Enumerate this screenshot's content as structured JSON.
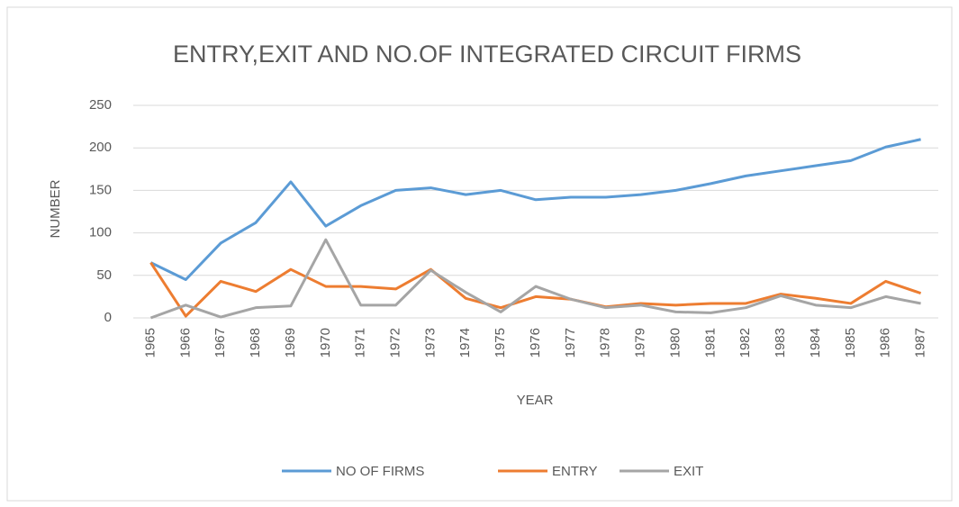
{
  "chart_data": {
    "type": "line",
    "title": "ENTRY,EXIT AND NO.OF INTEGRATED CIRCUIT FIRMS",
    "x_label": "YEAR",
    "y_label": "NUMBER",
    "categories": [
      "1965",
      "1966",
      "1967",
      "1968",
      "1969",
      "1970",
      "1971",
      "1972",
      "1973",
      "1974",
      "1975",
      "1976",
      "1977",
      "1978",
      "1979",
      "1980",
      "1981",
      "1982",
      "1983",
      "1984",
      "1985",
      "1986",
      "1987"
    ],
    "series": [
      {
        "name": "NO OF FIRMS",
        "color": "#5b9bd5",
        "values": [
          65,
          45,
          88,
          112,
          160,
          108,
          132,
          150,
          153,
          145,
          150,
          139,
          142,
          142,
          145,
          150,
          158,
          167,
          173,
          179,
          185,
          201,
          210
        ]
      },
      {
        "name": "ENTRY",
        "color": "#ed7d31",
        "values": [
          65,
          2,
          43,
          31,
          57,
          37,
          37,
          34,
          57,
          23,
          12,
          25,
          22,
          13,
          17,
          15,
          17,
          17,
          28,
          23,
          17,
          43,
          29
        ]
      },
      {
        "name": "EXIT",
        "color": "#a5a5a5",
        "values": [
          0,
          15,
          1,
          12,
          14,
          92,
          15,
          15,
          56,
          30,
          7,
          37,
          22,
          12,
          15,
          7,
          6,
          12,
          26,
          15,
          12,
          25,
          17
        ]
      }
    ],
    "ylim": [
      0,
      250
    ],
    "yticks": [
      0,
      50,
      100,
      150,
      200,
      250
    ],
    "grid": true,
    "legend": "bottom"
  }
}
